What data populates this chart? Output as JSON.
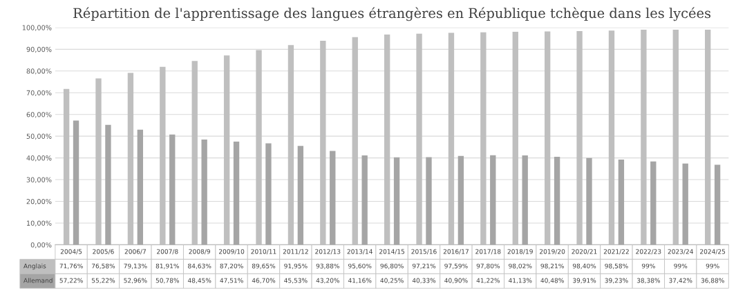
{
  "chart_data": {
    "type": "bar",
    "title": "Répartition de l'apprentissage des langues étrangères en République tchèque dans les lycées",
    "categories": [
      "2004/5",
      "2005/6",
      "2006/7",
      "2007/8",
      "2008/9",
      "2009/10",
      "2010/11",
      "2011/12",
      "2012/13",
      "2013/14",
      "2014/15",
      "2015/16",
      "2016/17",
      "2017/18",
      "2018/19",
      "2019/20",
      "2020/21",
      "2021/22",
      "2022/23",
      "2023/24",
      "2024/25"
    ],
    "series": [
      {
        "name": "Anglais",
        "color": "#bfbfbf",
        "values": [
          71.76,
          76.58,
          79.13,
          81.91,
          84.63,
          87.2,
          89.65,
          91.95,
          93.88,
          95.6,
          96.8,
          97.21,
          97.59,
          97.8,
          98.02,
          98.21,
          98.4,
          98.58,
          99,
          99,
          99
        ],
        "value_labels": [
          "71,76%",
          "76,58%",
          "79,13%",
          "81,91%",
          "84,63%",
          "87,20%",
          "89,65%",
          "91,95%",
          "93,88%",
          "95,60%",
          "96,80%",
          "97,21%",
          "97,59%",
          "97,80%",
          "98,02%",
          "98,21%",
          "98,40%",
          "98,58%",
          "99%",
          "99%",
          "99%"
        ]
      },
      {
        "name": "Allemand",
        "color": "#a5a5a5",
        "values": [
          57.22,
          55.22,
          52.96,
          50.78,
          48.45,
          47.51,
          46.7,
          45.53,
          43.2,
          41.16,
          40.25,
          40.33,
          40.9,
          41.22,
          41.13,
          40.48,
          39.91,
          39.23,
          38.38,
          37.42,
          36.88
        ],
        "value_labels": [
          "57,22%",
          "55,22%",
          "52,96%",
          "50,78%",
          "48,45%",
          "47,51%",
          "46,70%",
          "45,53%",
          "43,20%",
          "41,16%",
          "40,25%",
          "40,33%",
          "40,90%",
          "41,22%",
          "41,13%",
          "40,48%",
          "39,91%",
          "39,23%",
          "38,38%",
          "37,42%",
          "36,88%"
        ]
      }
    ],
    "ylim": [
      0,
      100
    ],
    "yticks": [
      {
        "value": 0,
        "label": "0,00%"
      },
      {
        "value": 10,
        "label": "10,00%"
      },
      {
        "value": 20,
        "label": "20,00%"
      },
      {
        "value": 30,
        "label": "30,00%"
      },
      {
        "value": 40,
        "label": "40,00%"
      },
      {
        "value": 50,
        "label": "50,00%"
      },
      {
        "value": 60,
        "label": "60,00%"
      },
      {
        "value": 70,
        "label": "70,00%"
      },
      {
        "value": 80,
        "label": "80,00%"
      },
      {
        "value": 90,
        "label": "90,00%"
      },
      {
        "value": 100,
        "label": "100,00%"
      }
    ],
    "grid": "y"
  }
}
